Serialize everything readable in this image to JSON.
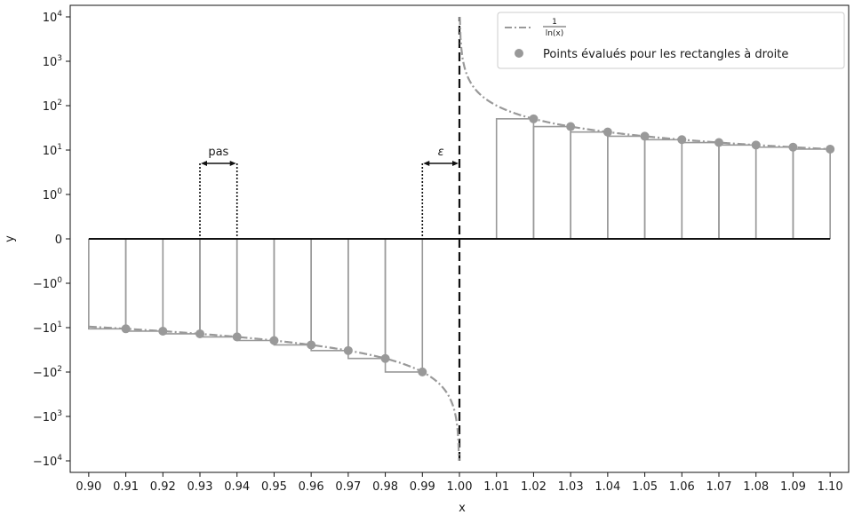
{
  "chart_data": {
    "type": "line",
    "title": "",
    "xlabel": "x",
    "ylabel": "y",
    "xlim": [
      0.895,
      1.105
    ],
    "yscale": "symlog",
    "ylim": [
      -10000,
      10000
    ],
    "x_ticks": [
      "0.90",
      "0.91",
      "0.92",
      "0.93",
      "0.94",
      "0.95",
      "0.96",
      "0.97",
      "0.98",
      "0.99",
      "1.00",
      "1.01",
      "1.02",
      "1.03",
      "1.04",
      "1.05",
      "1.06",
      "1.07",
      "1.08",
      "1.09",
      "1.10"
    ],
    "y_ticks": [
      {
        "value": 10000,
        "base": "10",
        "exp": "4"
      },
      {
        "value": 1000,
        "base": "10",
        "exp": "3"
      },
      {
        "value": 100,
        "base": "10",
        "exp": "2"
      },
      {
        "value": 10,
        "base": "10",
        "exp": "1"
      },
      {
        "value": 1,
        "base": "10",
        "exp": "0"
      },
      {
        "value": 0,
        "base": "0",
        "exp": ""
      },
      {
        "value": -1,
        "base": "−10",
        "exp": "0"
      },
      {
        "value": -10,
        "base": "−10",
        "exp": "1"
      },
      {
        "value": -100,
        "base": "−10",
        "exp": "2"
      },
      {
        "value": -1000,
        "base": "−10",
        "exp": "3"
      },
      {
        "value": -10000,
        "base": "−10",
        "exp": "4"
      }
    ],
    "grid": false,
    "legend_position": "top-right",
    "series": [
      {
        "name_num": "1",
        "name_den": "ln(x)",
        "kind": "curve",
        "style": "dash-dot",
        "color": "#999999",
        "function": "1/ln(x)",
        "x_range": [
          0.9,
          1.1
        ]
      },
      {
        "name": "Points évalués pour les rectangles à droite",
        "kind": "scatter",
        "color": "#999999",
        "x": [
          0.91,
          0.92,
          0.93,
          0.94,
          0.95,
          0.96,
          0.97,
          0.98,
          0.99,
          1.02,
          1.03,
          1.04,
          1.05,
          1.06,
          1.07,
          1.08,
          1.09,
          1.1
        ],
        "y": [
          -10.61,
          -11.99,
          -13.78,
          -16.16,
          -19.5,
          -24.5,
          -32.83,
          -49.5,
          -99.5,
          50.5,
          33.83,
          25.5,
          20.5,
          17.16,
          14.78,
          12.99,
          11.61,
          10.49
        ]
      }
    ],
    "rectangles": {
      "color": "#999999",
      "negative": [
        {
          "x0": 0.9,
          "x1": 0.91,
          "y": -10.61
        },
        {
          "x0": 0.91,
          "x1": 0.92,
          "y": -11.99
        },
        {
          "x0": 0.92,
          "x1": 0.93,
          "y": -13.78
        },
        {
          "x0": 0.93,
          "x1": 0.94,
          "y": -16.16
        },
        {
          "x0": 0.94,
          "x1": 0.95,
          "y": -19.5
        },
        {
          "x0": 0.95,
          "x1": 0.96,
          "y": -24.5
        },
        {
          "x0": 0.96,
          "x1": 0.97,
          "y": -32.83
        },
        {
          "x0": 0.97,
          "x1": 0.98,
          "y": -49.5
        },
        {
          "x0": 0.98,
          "x1": 0.99,
          "y": -99.5
        }
      ],
      "positive": [
        {
          "x0": 1.01,
          "x1": 1.02,
          "y": 50.5
        },
        {
          "x0": 1.02,
          "x1": 1.03,
          "y": 33.83
        },
        {
          "x0": 1.03,
          "x1": 1.04,
          "y": 25.5
        },
        {
          "x0": 1.04,
          "x1": 1.05,
          "y": 20.5
        },
        {
          "x0": 1.05,
          "x1": 1.06,
          "y": 17.16
        },
        {
          "x0": 1.06,
          "x1": 1.07,
          "y": 14.78
        },
        {
          "x0": 1.07,
          "x1": 1.08,
          "y": 12.99
        },
        {
          "x0": 1.08,
          "x1": 1.09,
          "y": 11.61
        },
        {
          "x0": 1.09,
          "x1": 1.1,
          "y": 10.49
        }
      ]
    },
    "reference_lines": [
      {
        "kind": "horizontal",
        "y": 0,
        "x_range": [
          0.9,
          1.1
        ],
        "style": "solid",
        "color": "#111111"
      },
      {
        "kind": "vertical",
        "x": 1.0,
        "y_range": [
          -10000,
          10000
        ],
        "style": "dashed",
        "color": "#111111"
      }
    ],
    "annotations": [
      {
        "text": "pas",
        "x0": 0.93,
        "x1": 0.94,
        "y": 5
      },
      {
        "text": "ε",
        "x0": 0.99,
        "x1": 1.0,
        "y": 5
      }
    ]
  }
}
